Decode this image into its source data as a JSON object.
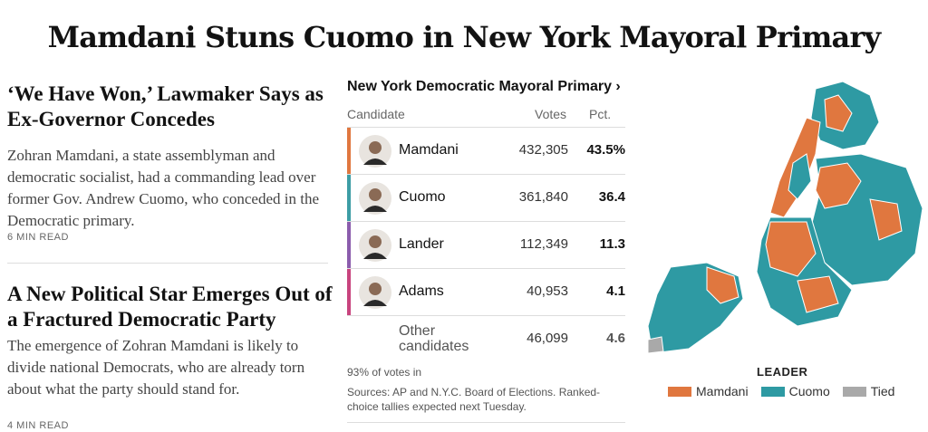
{
  "header": {
    "title": "Mamdani Stuns Cuomo in New York Mayoral Primary"
  },
  "stories": [
    {
      "headline": "‘We Have Won,’ Lawmaker Says as Ex-Governor Concedes",
      "summary": "Zohran Mamdani, a state assemblyman and democratic socialist, had a commanding lead over former Gov. Andrew Cuomo, who conceded in the Democratic primary.",
      "read_time": "6 MIN READ"
    },
    {
      "headline": "A New Political Star Emerges Out of a Fractured Democratic Party",
      "summary": "The emergence of Zohran Mamdani is likely to divide national Democrats, who are already torn about what the party should stand for.",
      "read_time": "4 MIN READ"
    }
  ],
  "results": {
    "title": "New York Democratic Mayoral Primary ›",
    "columns": [
      "Candidate",
      "Votes",
      "Pct."
    ],
    "rows": [
      {
        "name": "Mamdani",
        "votes": "432,305",
        "pct": "43.5%",
        "color": "#e0773f"
      },
      {
        "name": "Cuomo",
        "votes": "361,840",
        "pct": "36.4",
        "color": "#3d9da5"
      },
      {
        "name": "Lander",
        "votes": "112,349",
        "pct": "11.3",
        "color": "#8b5cad"
      },
      {
        "name": "Adams",
        "votes": "40,953",
        "pct": "4.1",
        "color": "#c8447e"
      },
      {
        "name": "Other candidates",
        "votes": "46,099",
        "pct": "4.6"
      }
    ],
    "reporting": "93% of votes in",
    "sources": "Sources: AP and N.Y.C. Board of Elections. Ranked-choice tallies expected next Tuesday."
  },
  "map": {
    "legend_title": "LEADER",
    "legend": [
      {
        "label": "Mamdani",
        "color": "#e0773f"
      },
      {
        "label": "Cuomo",
        "color": "#2e9aa3"
      },
      {
        "label": "Tied",
        "color": "#a9a9a9"
      }
    ]
  }
}
